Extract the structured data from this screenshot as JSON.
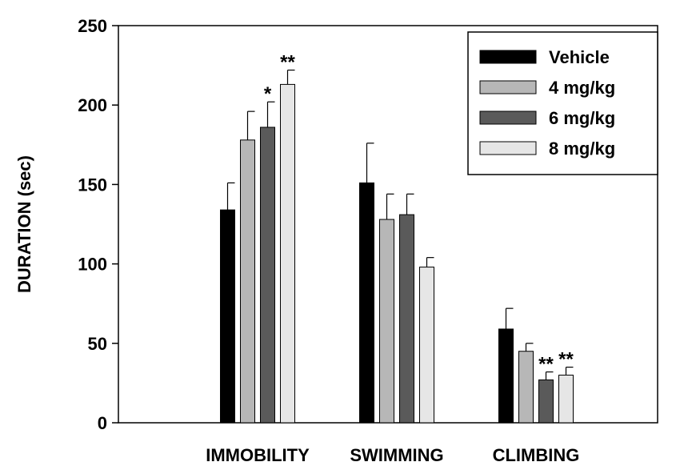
{
  "chart_data": {
    "type": "bar",
    "title": "",
    "xlabel": "",
    "ylabel": "DURATION (sec)",
    "ylim": [
      0,
      250
    ],
    "yticks": [
      0,
      50,
      100,
      150,
      200,
      250
    ],
    "grid": false,
    "legend_position": "top-right",
    "categories": [
      "IMMOBILITY",
      "SWIMMING",
      "CLIMBING"
    ],
    "series": [
      {
        "name": "Vehicle",
        "color": "#000000",
        "values": [
          134,
          151,
          59
        ],
        "errors": [
          17,
          25,
          13
        ]
      },
      {
        "name": "4 mg/kg",
        "color": "#b7b7b7",
        "values": [
          178,
          128,
          45
        ],
        "errors": [
          18,
          16,
          5
        ]
      },
      {
        "name": "6 mg/kg",
        "color": "#5a5a5a",
        "values": [
          186,
          131,
          27
        ],
        "errors": [
          16,
          13,
          5
        ]
      },
      {
        "name": "8 mg/kg",
        "color": "#e6e6e6",
        "values": [
          213,
          98,
          30
        ],
        "errors": [
          9,
          6,
          5
        ]
      }
    ],
    "annotations": [
      {
        "category": "IMMOBILITY",
        "series": "6 mg/kg",
        "text": "*"
      },
      {
        "category": "IMMOBILITY",
        "series": "8 mg/kg",
        "text": "**"
      },
      {
        "category": "CLIMBING",
        "series": "6 mg/kg",
        "text": "**"
      },
      {
        "category": "CLIMBING",
        "series": "8 mg/kg",
        "text": "**"
      }
    ]
  }
}
